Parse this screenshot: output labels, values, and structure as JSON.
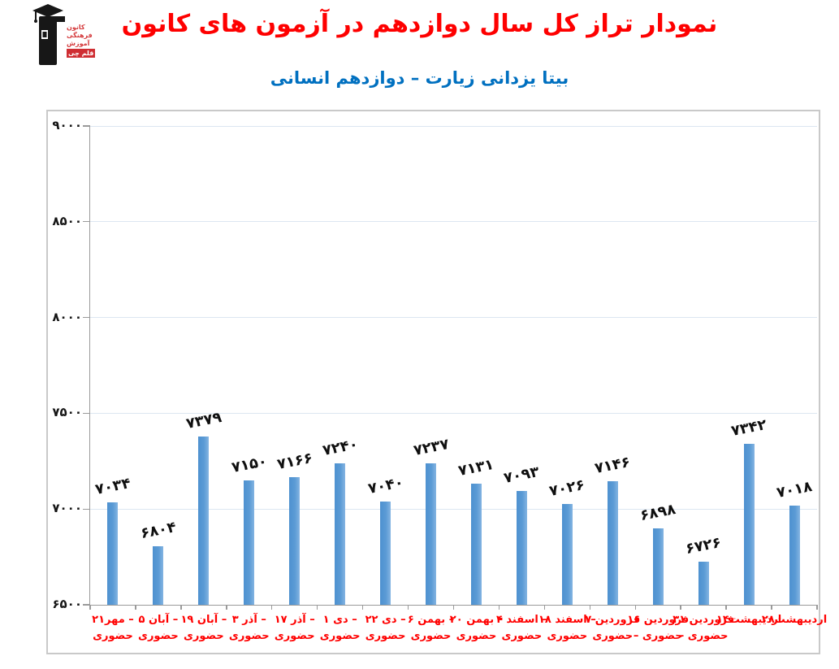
{
  "header": {
    "title": "نمودار تراز کل سال دوازدهم در آزمون های کانون",
    "subtitle": "بیتا یزدانی زیارت – دوازدهم انسانی"
  },
  "logo": {
    "lines": [
      "کانون",
      "فرهنگی",
      "آموزش"
    ],
    "box": "قلم چی"
  },
  "colors": {
    "title": "#fe0000",
    "subtitle": "#0070c0",
    "bar": "#5b9bd5",
    "gridline": "#dce6f1",
    "axis": "#9a9a9a",
    "x_labels": "#ff0000",
    "value_labels": "#0f0f0f",
    "frame_border": "#c9c9c9",
    "logo_red": "#cf2e33"
  },
  "chart_data": {
    "type": "bar",
    "title": "نمودار تراز کل سال دوازدهم در آزمون های کانون",
    "subtitle": "بیتا یزدانی زیارت – دوازدهم انسانی",
    "xlabel": "",
    "ylabel": "",
    "ylim": [
      6500,
      9000
    ],
    "ytick_step": 500,
    "grid": "on",
    "legend": "none",
    "yticks": [
      {
        "value": 9000,
        "label": "۹۰۰۰"
      },
      {
        "value": 8500,
        "label": "۸۵۰۰"
      },
      {
        "value": 8000,
        "label": "۸۰۰۰"
      },
      {
        "value": 7500,
        "label": "۷۵۰۰"
      },
      {
        "value": 7000,
        "label": "۷۰۰۰"
      },
      {
        "value": 6500,
        "label": "۶۵۰۰"
      }
    ],
    "categories": [
      "۲۱مهر – حضوری",
      "۵ آبان – حضوری",
      "۱۹ آبان – حضوری",
      "۳ آذر – حضوری",
      "۱۷ آذر – حضوری",
      "۱ دی – حضوری",
      "۲۲ دی – حضوری",
      "۶ بهمن – حضوری",
      "۲۰ بهمن – حضوری",
      "۴ اسفند – حضوری",
      "۱۸ اسفند – حضوری",
      "۷ فروردین حضوری",
      "۱۶ فروردین – حضوری",
      "۳۱ فروردین – حضوری",
      "۱۴اردیبهشت",
      "۲۸اردیبهشت"
    ],
    "category_label_lines": [
      [
        "۲۱مهر –",
        "حضوری"
      ],
      [
        "۵ آبان –",
        "حضوری"
      ],
      [
        "۱۹ آبان –",
        "حضوری"
      ],
      [
        "۳ آذر –",
        "حضوری"
      ],
      [
        "۱۷ آذر –",
        "حضوری"
      ],
      [
        "۱ دی –",
        "حضوری"
      ],
      [
        "۲۲ دی –",
        "حضوری"
      ],
      [
        "۶ بهمن –",
        "حضوری"
      ],
      [
        "۲۰ بهمن –",
        "حضوری"
      ],
      [
        "۴ اسفند –",
        "حضوری"
      ],
      [
        "۱۸ اسفند –",
        "حضوری"
      ],
      [
        "۷ فروردین",
        "حضوری"
      ],
      [
        "۱۶ فروردین",
        "– حضوری"
      ],
      [
        "۳۱ فروردین",
        "– حضوری"
      ],
      [
        "۱۴اردیبهشت"
      ],
      [
        "۲۸اردیبهشت"
      ]
    ],
    "values": [
      7034,
      6804,
      7379,
      7150,
      7166,
      7240,
      7040,
      7237,
      7131,
      7093,
      7026,
      7146,
      6898,
      6726,
      7342,
      7018
    ],
    "value_labels": [
      "۷۰۳۴",
      "۶۸۰۴",
      "۷۳۷۹",
      "۷۱۵۰",
      "۷۱۶۶",
      "۷۲۴۰",
      "۷۰۴۰",
      "۷۲۳۷",
      "۷۱۳۱",
      "۷۰۹۳",
      "۷۰۲۶",
      "۷۱۴۶",
      "۶۸۹۸",
      "۶۷۲۶",
      "۷۳۴۲",
      "۷۰۱۸"
    ]
  }
}
